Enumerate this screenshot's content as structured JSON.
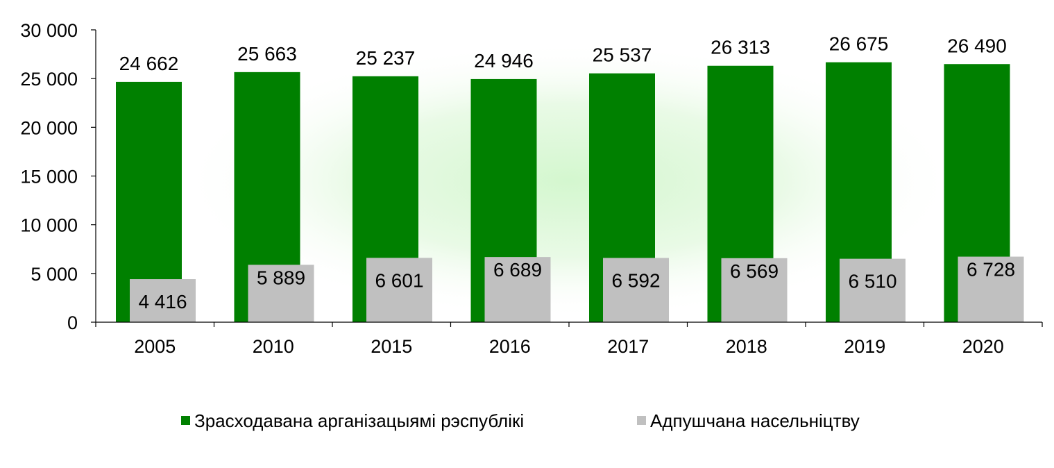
{
  "chart_data": {
    "type": "bar",
    "title": "",
    "xlabel": "",
    "ylabel": "",
    "categories": [
      "2005",
      "2010",
      "2015",
      "2016",
      "2017",
      "2018",
      "2019",
      "2020"
    ],
    "ylim": [
      0,
      30000
    ],
    "yticks": [
      0,
      5000,
      10000,
      15000,
      20000,
      25000,
      30000
    ],
    "ytick_labels": [
      "0",
      "5 000",
      "10 000",
      "15 000",
      "20 000",
      "25 000",
      "30 000"
    ],
    "grid": false,
    "legend_position": "bottom",
    "series": [
      {
        "name": "Зрасходавана арганізацыямі рэспублікі",
        "color": "#008000",
        "values": [
          24662,
          25663,
          25237,
          24946,
          25537,
          26313,
          26675,
          26490
        ],
        "labels": [
          "24 662",
          "25 663",
          "25 237",
          "24 946",
          "25 537",
          "26 313",
          "26 675",
          "26 490"
        ]
      },
      {
        "name": "Адпушчана насельніцтву",
        "color": "#c0c0c0",
        "values": [
          4416,
          5889,
          6601,
          6689,
          6592,
          6569,
          6510,
          6728
        ],
        "labels": [
          "4 416",
          "5 889",
          "6 601",
          "6 689",
          "6 592",
          "6 569",
          "6 510",
          "6 728"
        ]
      }
    ]
  }
}
